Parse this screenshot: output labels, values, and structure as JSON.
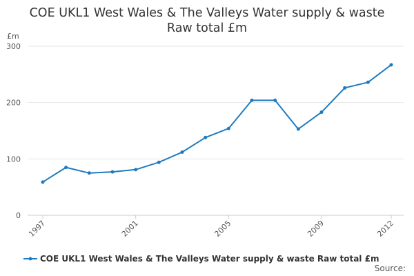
{
  "chart_data": {
    "type": "line",
    "title": "COE UKL1 West Wales & The Valleys Water supply & waste Raw total £m",
    "title_lines": [
      "COE UKL1 West Wales & The Valleys Water supply & waste",
      "Raw total £m"
    ],
    "ylabel": "£m",
    "xlabel": "",
    "ylim": [
      0,
      300
    ],
    "yticks": [
      0,
      100,
      200,
      300
    ],
    "xlim": [
      1997,
      2012
    ],
    "xticks": [
      1997,
      2001,
      2005,
      2009,
      2012
    ],
    "grid": true,
    "legend_position": "bottom-left",
    "colors": {
      "series": "#1f7bbf",
      "grid": "#e6e6e6"
    },
    "x": [
      1997,
      1998,
      1999,
      2000,
      2001,
      2002,
      2003,
      2004,
      2005,
      2006,
      2007,
      2008,
      2009,
      2010,
      2011,
      2012
    ],
    "series": [
      {
        "name": "COE UKL1 West Wales & The Valleys Water supply & waste Raw total £m",
        "values": [
          59,
          85,
          75,
          77,
          81,
          94,
          112,
          138,
          154,
          204,
          204,
          153,
          183,
          226,
          236,
          267
        ]
      }
    ]
  },
  "source_label": "Source:"
}
